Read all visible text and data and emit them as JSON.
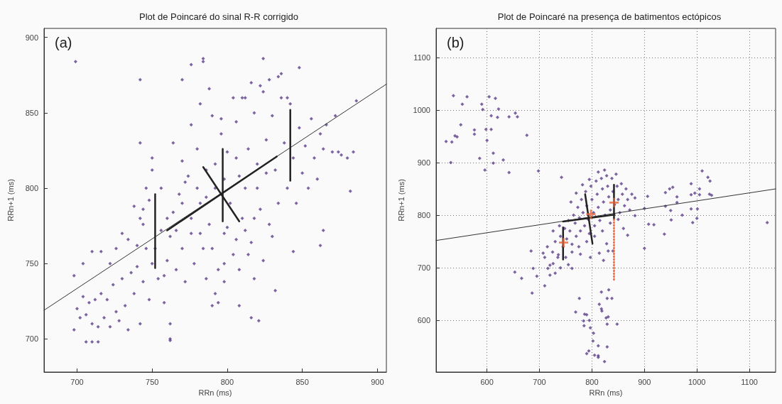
{
  "chart_data": [
    {
      "type": "scatter",
      "title": "Plot de Poincaré do sinal R-R corrigido",
      "xlabel": "RRn (ms)",
      "ylabel": "RRn+1 (ms)",
      "xlim": [
        678,
        906
      ],
      "ylim": [
        678,
        906
      ],
      "xticks": [
        700,
        750,
        800,
        850,
        900
      ],
      "yticks": [
        700,
        750,
        800,
        850,
        900
      ],
      "grid": false,
      "annotations": [
        "(a)"
      ],
      "series": [
        {
          "color": "#5b3f8a",
          "marker": "diamond",
          "x": [
            699,
            776,
            784,
            784,
            824,
            848,
            742,
            770,
            836,
            886,
            882,
            884,
            880,
            864,
            862,
            844,
            832,
            821,
            816,
            808,
            790,
            794,
            762,
            762,
            706,
            710,
            714,
            698,
            698,
            742,
            746,
            750,
            700,
            702,
            704,
            706,
            708,
            710,
            712,
            714,
            716,
            718,
            720,
            722,
            724,
            726,
            728,
            730,
            732,
            734,
            736,
            738,
            740,
            742,
            744,
            746,
            748,
            704,
            710,
            716,
            722,
            726,
            730,
            734,
            738,
            742,
            744,
            748,
            750,
            752,
            754,
            756,
            758,
            760,
            762,
            764,
            766,
            768,
            770,
            772,
            774,
            776,
            778,
            780,
            782,
            784,
            786,
            788,
            790,
            792,
            794,
            796,
            798,
            800,
            802,
            804,
            806,
            808,
            810,
            812,
            814,
            816,
            818,
            820,
            822,
            824,
            826,
            828,
            830,
            832,
            834,
            836,
            838,
            840,
            842,
            844,
            846,
            848,
            850,
            852,
            854,
            856,
            858,
            860,
            862,
            864,
            866,
            870,
            872,
            874,
            876,
            764,
            770,
            776,
            782,
            788,
            796,
            800,
            804,
            810,
            816,
            822,
            828,
            834,
            840,
            776,
            782,
            790,
            798,
            806,
            812,
            818,
            824,
            830,
            770,
            780,
            786,
            792,
            798,
            806,
            812,
            820,
            826,
            760,
            756,
            766,
            772,
            744,
            740,
            750,
            758,
            762,
            786,
            792,
            798,
            808,
            814,
            818
          ],
          "values": [
            884,
            882,
            886,
            884,
            886,
            880,
            872,
            872,
            876,
            858,
            798,
            824,
            820,
            772,
            762,
            758,
            732,
            712,
            714,
            722,
            722,
            724,
            699,
            700,
            698,
            698,
            698,
            706,
            742,
            830,
            800,
            820,
            720,
            714,
            728,
            716,
            724,
            710,
            726,
            708,
            730,
            714,
            726,
            708,
            736,
            718,
            712,
            740,
            722,
            706,
            744,
            730,
            748,
            710,
            738,
            760,
            726,
            750,
            758,
            758,
            750,
            760,
            770,
            766,
            788,
            780,
            786,
            792,
            812,
            760,
            740,
            772,
            724,
            752,
            710,
            784,
            746,
            796,
            760,
            738,
            808,
            770,
            750,
            826,
            790,
            760,
            812,
            776,
            848,
            800,
            746,
            836,
            770,
            824,
            790,
            756,
            844,
            808,
            780,
            860,
            826,
            764,
            850,
            800,
            786,
            864,
            832,
            776,
            848,
            812,
            790,
            860,
            830,
            800,
            856,
            820,
            790,
            840,
            810,
            828,
            800,
            846,
            820,
            806,
            836,
            826,
            842,
            824,
            848,
            824,
            822,
            830,
            818,
            842,
            856,
            866,
            846,
            774,
            860,
            860,
            870,
            868,
            872,
            874,
            860,
            780,
            770,
            760,
            750,
            766,
            772,
            780,
            752,
            768,
            790,
            800,
            794,
            816,
            806,
            820,
            800,
            816,
            810,
            780,
            800,
            772,
            804,
            776,
            762,
            750,
            742,
            768,
            740,
            730,
            738,
            746,
            756,
            740
          ]
        },
        {
          "type": "line",
          "color": "#333333",
          "marker": "none",
          "x": [
            678,
            906
          ],
          "values": [
            719,
            869
          ]
        },
        {
          "type": "line",
          "color": "#222222",
          "marker": "none",
          "x": [
            784,
            808
          ],
          "values": [
            814,
            778
          ]
        },
        {
          "type": "line",
          "color": "#222222",
          "marker": "none",
          "x": [
            760,
            833
          ],
          "values": [
            772,
            821
          ]
        },
        {
          "type": "line",
          "color": "#222222",
          "marker": "none",
          "x": [
            752,
            752
          ],
          "values": [
            747,
            796
          ]
        },
        {
          "type": "line",
          "color": "#222222",
          "marker": "none",
          "x": [
            797,
            797
          ],
          "values": [
            778,
            826
          ]
        },
        {
          "type": "line",
          "color": "#222222",
          "marker": "none",
          "x": [
            842,
            842
          ],
          "values": [
            805,
            852
          ]
        }
      ]
    },
    {
      "type": "scatter",
      "title": "Plot de Poincaré na presença de batimentos ectópicos",
      "xlabel": "RRn (ms)",
      "ylabel": "RRn+1 (ms)",
      "xlim": [
        503,
        1150
      ],
      "ylim": [
        502,
        1155
      ],
      "xticks": [
        600,
        700,
        800,
        900,
        1000,
        1100
      ],
      "yticks": [
        600,
        700,
        800,
        900,
        1000,
        1100
      ],
      "grid": true,
      "annotations": [
        "(b)"
      ],
      "series": [
        {
          "color": "#5b3f8a",
          "marker": "diamond",
          "x": [
            522,
            531,
            533,
            536,
            539,
            543,
            550,
            553,
            562,
            576,
            576,
            586,
            590,
            592,
            596,
            598,
            600,
            604,
            608,
            608,
            612,
            612,
            616,
            620,
            622,
            631,
            642,
            642,
            654,
            658,
            676,
            698,
            742,
            900,
            906,
            908,
            918,
            900,
            940,
            940,
            938,
            948,
            954,
            950,
            951,
            962,
            962,
            972,
            989,
            989,
            996,
            989,
            992,
            1000,
            1001,
            1005,
            1005,
            1010,
            1021,
            1025,
            1024,
            1028,
            1134,
            882,
            882,
            776,
            769,
            786,
            790,
            784,
            785,
            795,
            797,
            803,
            802,
            790,
            794,
            805,
            812,
            812,
            824,
            812,
            829,
            814,
            818,
            818,
            819,
            832,
            829,
            838,
            827,
            831,
            829,
            848,
            831,
            822,
            814,
            653,
            666,
            686,
            710,
            684,
            688,
            695,
            707,
            716,
            726,
            736,
            755,
            762,
            710,
            715,
            720,
            725,
            730,
            735,
            740,
            745,
            748,
            752,
            755,
            758,
            762,
            765,
            768,
            770,
            773,
            776,
            778,
            780,
            783,
            786,
            788,
            790,
            793,
            795,
            798,
            800,
            803,
            805,
            808,
            810,
            812,
            815,
            818,
            820,
            822,
            825,
            828,
            830,
            832,
            835,
            838,
            840,
            843,
            846,
            848,
            850,
            853,
            856,
            858,
            862,
            865,
            868,
            872,
            876,
            760,
            770,
            782,
            795,
            812,
            824,
            750,
            762,
            775,
            790,
            805,
            820,
            835,
            850,
            860,
            868,
            740,
            730,
            720,
            828,
            840,
            778,
            797,
            726,
            738
          ],
          "values": [
            940,
            900,
            939,
            1027,
            951,
            949,
            972,
            1011,
            1025,
            954,
            962,
            908,
            1011,
            1001,
            886,
            963,
            942,
            1025,
            989,
            963,
            918,
            899,
            1022,
            986,
            1002,
            905,
            987,
            881,
            994,
            987,
            952,
            884,
            872,
            813,
            836,
            783,
            782,
            737,
            843,
            817,
            764,
            850,
            853,
            809,
            791,
            835,
            824,
            800,
            860,
            839,
            842,
            812,
            786,
            794,
            812,
            850,
            839,
            884,
            872,
            865,
            840,
            838,
            786,
            799,
            833,
            642,
            616,
            612,
            611,
            599,
            590,
            600,
            586,
            576,
            561,
            537,
            542,
            534,
            533,
            530,
            522,
            552,
            550,
            631,
            654,
            622,
            618,
            658,
            642,
            642,
            605,
            607,
            593,
            593,
            732,
            714,
            728,
            692,
            680,
            652,
            666,
            732,
            699,
            684,
            728,
            699,
            708,
            725,
            706,
            699,
            720,
            740,
            705,
            730,
            750,
            720,
            760,
            740,
            775,
            755,
            790,
            770,
            745,
            800,
            785,
            760,
            815,
            795,
            770,
            830,
            805,
            780,
            845,
            818,
            792,
            765,
            855,
            830,
            805,
            780,
            865,
            840,
            815,
            790,
            870,
            850,
            825,
            800,
            875,
            855,
            835,
            810,
            870,
            845,
            820,
            878,
            855,
            830,
            805,
            860,
            840,
            818,
            850,
            830,
            810,
            840,
            825,
            842,
            858,
            868,
            882,
            886,
            720,
            730,
            740,
            750,
            760,
            770,
            785,
            792,
            775,
            762,
            700,
            690,
            686,
            746,
            732,
            726,
            720,
            770,
            780
          ]
        },
        {
          "type": "line",
          "color": "#333333",
          "marker": "none",
          "x": [
            503,
            1150
          ],
          "values": [
            752,
            850
          ]
        },
        {
          "type": "line",
          "color": "#222222",
          "marker": "none",
          "x": [
            787,
            801
          ],
          "values": [
            840,
            746
          ]
        },
        {
          "type": "line",
          "color": "#222222",
          "marker": "none",
          "x": [
            745,
            843
          ],
          "values": [
            788,
            801
          ]
        },
        {
          "type": "line",
          "color": "#222222",
          "marker": "none",
          "x": [
            745,
            745
          ],
          "values": [
            716,
            777
          ]
        },
        {
          "type": "line",
          "color": "#222222",
          "marker": "none",
          "x": [
            842,
            842
          ],
          "values": [
            793,
            858
          ]
        },
        {
          "type": "line",
          "color": "#e8643a",
          "marker": "none",
          "line_style": "dotted",
          "x": [
            842,
            842
          ],
          "values": [
            792,
            676
          ]
        },
        {
          "type": "scatter",
          "color": "#e8643a",
          "marker": "cross",
          "x": [
            746,
            798,
            842
          ],
          "values": [
            748,
            802,
            824
          ]
        }
      ]
    }
  ]
}
